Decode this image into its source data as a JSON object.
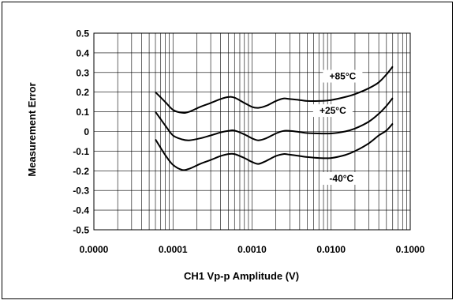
{
  "chart_data": {
    "type": "line",
    "title": "",
    "xlabel": "CH1 Vp-p Amplitude (V)",
    "ylabel": "Measurement Error",
    "x_scale": "log",
    "xlim": [
      1e-05,
      0.1
    ],
    "ylim": [
      -0.5,
      0.5
    ],
    "grid": true,
    "x_tick_labels": [
      "0.0000",
      "0.0001",
      "0.0010",
      "0.0100",
      "0.1000"
    ],
    "x_tick_values": [
      1e-05,
      0.0001,
      0.001,
      0.01,
      0.1
    ],
    "y_tick_values": [
      -0.5,
      -0.4,
      -0.3,
      -0.2,
      -0.1,
      0,
      0.1,
      0.2,
      0.3,
      0.4,
      0.5
    ],
    "y_tick_labels": [
      "-0.5",
      "-0.4",
      "-0.3",
      "-0.2",
      "-0.1",
      "0",
      "0.1",
      "0.2",
      "0.3",
      "0.4",
      "0.5"
    ],
    "series": [
      {
        "name": "+85°C",
        "x": [
          6e-05,
          8e-05,
          0.0001,
          0.00013,
          0.00016,
          0.00022,
          0.0003,
          0.0004,
          0.0005,
          0.0006,
          0.0008,
          0.001,
          0.0012,
          0.0015,
          0.002,
          0.0025,
          0.003,
          0.004,
          0.005,
          0.007,
          0.01,
          0.015,
          0.02,
          0.03,
          0.04,
          0.05,
          0.06
        ],
        "y": [
          0.2,
          0.15,
          0.11,
          0.095,
          0.1,
          0.125,
          0.145,
          0.165,
          0.175,
          0.172,
          0.145,
          0.125,
          0.12,
          0.13,
          0.155,
          0.168,
          0.165,
          0.16,
          0.155,
          0.155,
          0.16,
          0.175,
          0.19,
          0.22,
          0.25,
          0.29,
          0.33
        ]
      },
      {
        "name": "+25°C",
        "x": [
          6e-05,
          8e-05,
          0.0001,
          0.00013,
          0.00016,
          0.00022,
          0.0003,
          0.0004,
          0.0005,
          0.0006,
          0.0008,
          0.001,
          0.0012,
          0.0015,
          0.002,
          0.0025,
          0.003,
          0.004,
          0.005,
          0.007,
          0.01,
          0.015,
          0.02,
          0.03,
          0.04,
          0.05,
          0.06
        ],
        "y": [
          0.1,
          0.03,
          -0.02,
          -0.04,
          -0.045,
          -0.035,
          -0.02,
          -0.005,
          0.003,
          0.005,
          -0.015,
          -0.035,
          -0.045,
          -0.035,
          -0.01,
          0.003,
          0.003,
          -0.003,
          -0.008,
          -0.01,
          -0.01,
          0,
          0.015,
          0.05,
          0.09,
          0.13,
          0.17
        ]
      },
      {
        "name": "-40°C",
        "x": [
          6e-05,
          8e-05,
          0.0001,
          0.00013,
          0.00016,
          0.00022,
          0.0003,
          0.0004,
          0.0005,
          0.0006,
          0.0008,
          0.001,
          0.0012,
          0.0015,
          0.002,
          0.0025,
          0.003,
          0.004,
          0.005,
          0.007,
          0.01,
          0.015,
          0.02,
          0.03,
          0.04,
          0.05,
          0.06
        ],
        "y": [
          -0.04,
          -0.12,
          -0.17,
          -0.195,
          -0.19,
          -0.165,
          -0.145,
          -0.125,
          -0.115,
          -0.115,
          -0.135,
          -0.155,
          -0.165,
          -0.15,
          -0.125,
          -0.115,
          -0.118,
          -0.125,
          -0.13,
          -0.135,
          -0.135,
          -0.12,
          -0.1,
          -0.06,
          -0.02,
          0.005,
          0.04
        ]
      }
    ]
  }
}
